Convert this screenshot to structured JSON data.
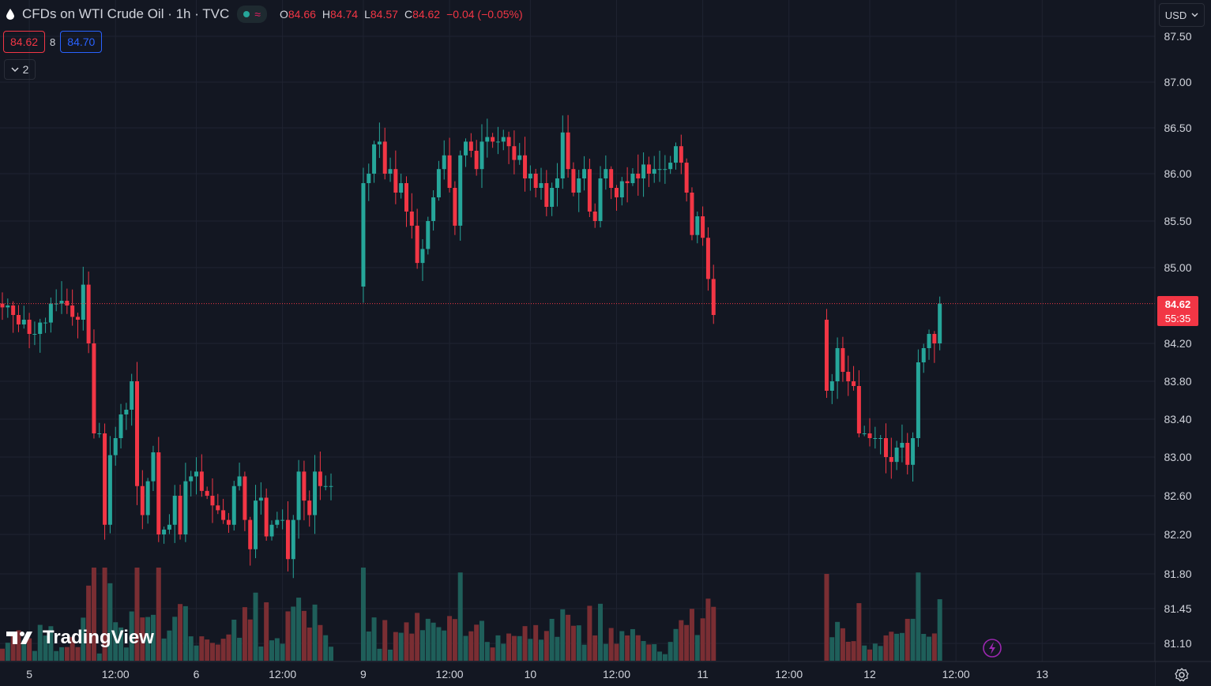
{
  "header": {
    "title": "CFDs on WTI Crude Oil · 1h · TVC",
    "ohlc": [
      {
        "label": "O",
        "value": "84.66"
      },
      {
        "label": "H",
        "value": "84.74"
      },
      {
        "label": "L",
        "value": "84.57"
      },
      {
        "label": "C",
        "value": "84.62"
      },
      {
        "label": "",
        "value": "−0.04 (−0.05%)"
      }
    ],
    "bid": "84.62",
    "spread": "8",
    "ask": "84.70",
    "indicators_count": "2",
    "currency": "USD"
  },
  "price_label": {
    "price": "84.62",
    "countdown": "55:35"
  },
  "branding": "TradingView",
  "colors": {
    "up": "#26a69a",
    "down": "#f23645",
    "background": "#131722",
    "grid": "#1f2331"
  },
  "chart_data": {
    "type": "candlestick",
    "interval": "1h",
    "y_ticks": [
      "87.50",
      "87.00",
      "86.50",
      "86.00",
      "85.50",
      "85.00",
      "84.20",
      "83.80",
      "83.40",
      "83.00",
      "82.60",
      "82.20",
      "81.80",
      "81.45",
      "81.10"
    ],
    "y_tick_values": [
      87.5,
      87.0,
      86.5,
      86.0,
      85.5,
      85.0,
      84.2,
      83.8,
      83.4,
      83.0,
      82.6,
      82.2,
      81.8,
      81.45,
      81.1
    ],
    "x_ticks": [
      "5",
      "12:00",
      "6",
      "12:00",
      "9",
      "12:00",
      "10",
      "12:00",
      "11",
      "12:00",
      "12",
      "12:00",
      "13"
    ],
    "x_tick_bar_index": [
      5,
      21,
      36,
      52,
      67,
      83,
      98,
      114,
      130,
      146,
      161,
      177,
      193
    ],
    "last_price": 84.62,
    "segments": [
      {
        "start_index": 0,
        "open": 84.62,
        "closes": [
          84.58,
          84.6,
          84.5,
          84.4,
          84.45,
          84.3,
          84.3,
          84.42,
          84.42,
          84.62,
          84.62,
          84.65,
          84.6,
          84.48,
          84.45,
          84.82,
          84.2,
          83.25,
          83.25,
          82.3,
          83.02,
          83.2,
          83.45,
          83.5,
          83.8,
          82.7,
          82.4,
          82.75,
          83.05,
          82.2,
          82.25,
          82.3,
          82.6,
          82.2,
          82.75,
          82.8,
          82.85,
          82.65,
          82.6,
          82.5,
          82.45,
          82.35,
          82.3,
          82.7,
          82.8,
          82.35,
          82.05,
          82.55,
          82.58,
          82.18,
          82.3,
          82.35,
          82.35,
          81.95,
          82.35,
          82.85,
          82.55,
          82.4,
          82.85,
          82.7,
          82.7,
          82.7
        ]
      },
      {
        "start_index": 67,
        "open": 84.8,
        "closes": [
          85.9,
          86.0,
          86.32,
          86.35,
          86.0,
          86.05,
          85.8,
          85.9,
          85.6,
          85.45,
          85.05,
          85.2,
          85.5,
          85.75,
          86.05,
          86.2,
          85.85,
          85.45,
          86.2,
          86.35,
          86.25,
          86.05,
          86.35,
          86.4,
          86.35,
          86.35,
          86.4,
          86.3,
          86.15,
          86.2,
          85.95,
          86.0,
          85.85,
          85.9,
          85.65,
          85.85,
          85.95,
          86.45,
          86.05,
          85.8,
          85.95,
          86.05,
          85.6,
          85.5,
          85.95,
          86.05,
          85.85,
          85.75,
          85.92,
          85.9,
          86.0,
          85.95,
          86.1,
          86.0,
          86.05,
          86.05,
          86.05,
          86.12,
          86.3,
          86.12,
          85.8,
          85.35,
          85.55,
          85.32,
          84.88,
          84.5
        ]
      },
      {
        "start_index": 153,
        "open": 84.45,
        "closes": [
          83.7,
          83.8,
          84.15,
          83.9,
          83.8,
          83.75,
          83.25,
          83.25,
          83.2,
          83.2,
          83.2,
          83.0,
          82.95,
          83.1,
          83.15,
          82.92,
          83.2,
          84.0,
          84.15,
          84.3,
          84.2,
          84.62
        ]
      }
    ],
    "volume_last": 0.14
  }
}
